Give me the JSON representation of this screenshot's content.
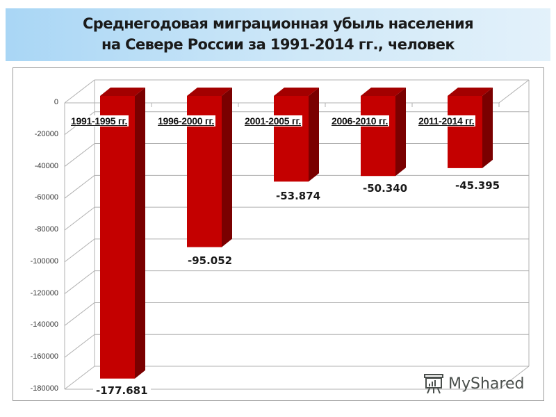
{
  "title": {
    "line1": "Среднегодовая миграционная убыль населения",
    "line2": "на Севере России за 1991-2014 гг., человек"
  },
  "y_axis": {
    "ticks": [
      "0",
      "-20000",
      "-40000",
      "-60000",
      "-80000",
      "-100000",
      "-120000",
      "-140000",
      "-160000",
      "-180000"
    ]
  },
  "bars": [
    {
      "category": "1991-1995 гг.",
      "label": "-177.681"
    },
    {
      "category": "1996-2000 гг.",
      "label": "-95.052"
    },
    {
      "category": "2001-2005 гг.",
      "label": "-53.874"
    },
    {
      "category": "2006-2010 гг.",
      "label": "-50.340"
    },
    {
      "category": "2011-2014 гг.",
      "label": "-45.395"
    }
  ],
  "colors": {
    "bar_front": "#c40000",
    "bar_side": "#7a0000",
    "bar_top": "#a30000",
    "banner": "#bfe0f6",
    "gridline": "#b0b0b0"
  },
  "watermark": {
    "text": "MyShared",
    "icon": "presentation-board-icon"
  },
  "chart_data": {
    "type": "bar",
    "title": "Среднегодовая миграционная убыль населения на Севере России за 1991-2014 гг., человек",
    "categories": [
      "1991-1995 гг.",
      "1996-2000 гг.",
      "2001-2005 гг.",
      "2006-2010 гг.",
      "2011-2014 гг."
    ],
    "values": [
      -177681,
      -95052,
      -53874,
      -50340,
      -45395
    ],
    "data_labels": [
      "-177.681",
      "-95.052",
      "-53.874",
      "-50.340",
      "-45.395"
    ],
    "xlabel": "",
    "ylabel": "",
    "ylim": [
      -180000,
      0
    ],
    "yticks": [
      0,
      -20000,
      -40000,
      -60000,
      -80000,
      -100000,
      -120000,
      -140000,
      -160000,
      -180000
    ],
    "grid": true,
    "legend": "none",
    "style": "3d-column"
  }
}
